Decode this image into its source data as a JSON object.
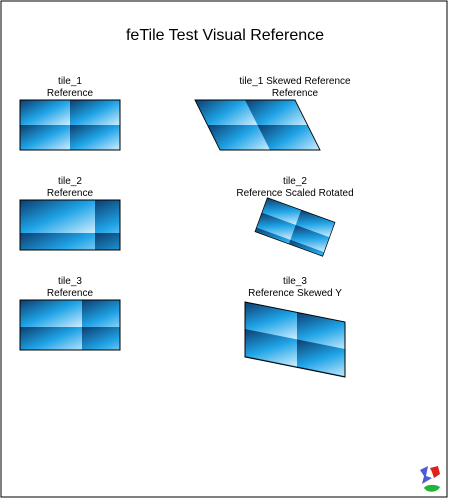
{
  "title": "feTile Test Visual Reference",
  "panels": [
    {
      "name": "tile_1",
      "caption": "Reference"
    },
    {
      "name": "tile_1 Skewed Reference",
      "caption": "Reference"
    },
    {
      "name": "tile_2",
      "caption": "Reference"
    },
    {
      "name": "tile_2",
      "caption": "Reference Scaled Rotated"
    },
    {
      "name": "tile_3",
      "caption": "Reference"
    },
    {
      "name": "tile_3",
      "caption": "Reference Skewed Y"
    }
  ],
  "colors": {
    "tile_dark": "#0d3d6e",
    "tile_mid": "#1fa3e6",
    "tile_light": "#cfeeff",
    "border": "#000000"
  },
  "logo": {
    "icon": "svg-logo-icon"
  }
}
